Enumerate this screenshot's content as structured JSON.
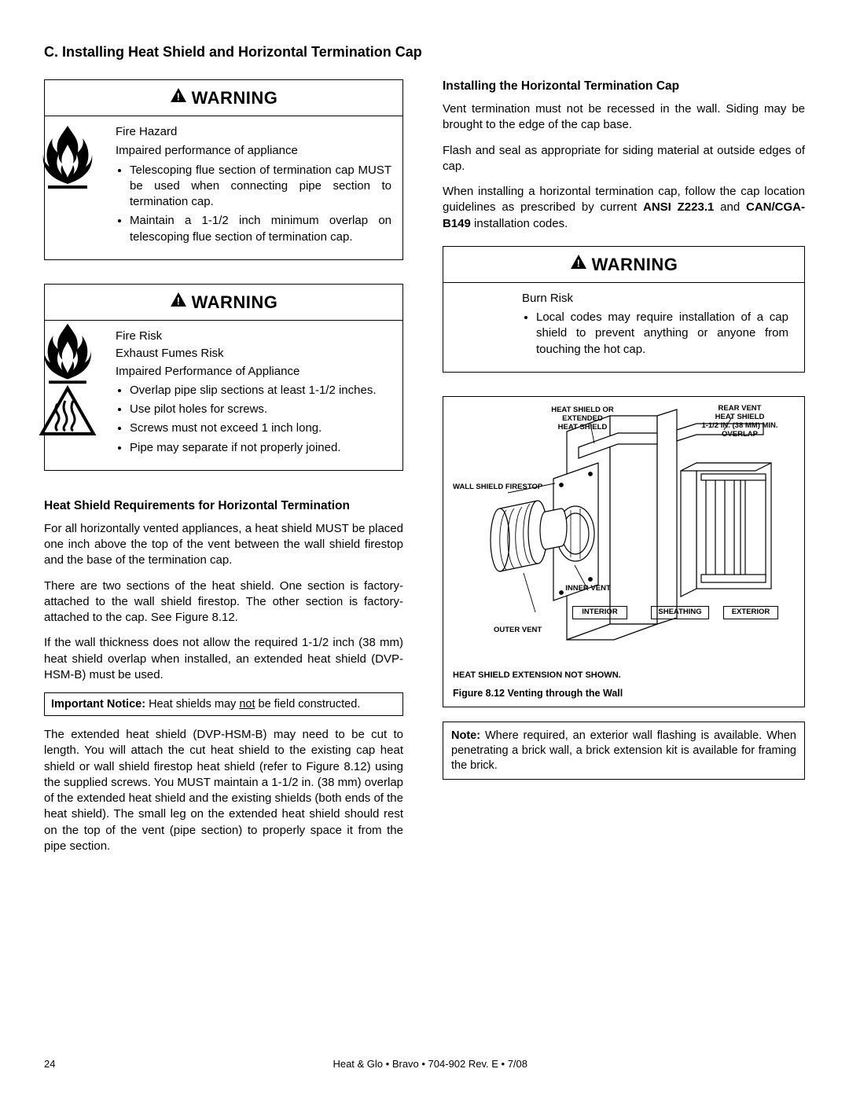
{
  "section_title": "C.  Installing Heat Shield and Horizontal Termination Cap",
  "warning1": {
    "header": "WARNING",
    "line1": "Fire Hazard",
    "line2": "Impaired performance of appliance",
    "bullets": [
      "Telescoping flue section of termination cap MUST be used when connecting pipe section to termination cap.",
      "Maintain a 1-1/2 inch minimum overlap on telescoping flue section of termination cap."
    ]
  },
  "warning2": {
    "header": "WARNING",
    "line1": "Fire Risk",
    "line2": "Exhaust Fumes Risk",
    "line3": "Impaired Performance of Appliance",
    "bullets": [
      "Overlap pipe slip sections at least 1-1/2 inches.",
      "Use pilot holes for screws.",
      "Screws must not exceed 1 inch long.",
      "Pipe may separate if not properly joined."
    ]
  },
  "left": {
    "h1": "Heat Shield Requirements for Horizontal Termination",
    "p1": "For all horizontally vented appliances, a heat shield MUST be placed one inch above the top of the vent between the wall shield firestop and the base of the termination cap.",
    "p2": "There are two sections of the heat shield. One section is factory-attached to the wall shield firestop.  The other section is factory-attached to the cap.  See Figure 8.12.",
    "p3": "If the wall thickness does not allow the required 1-1/2 inch (38 mm) heat shield overlap when installed, an extended heat shield (DVP-HSM-B) must be used.",
    "notice_prefix": "Important Notice:  ",
    "notice_rest": "Heat shields may ",
    "notice_underline": "not",
    "notice_tail": " be field constructed.",
    "p4": "The extended heat shield (DVP-HSM-B) may need to be cut to length.  You will attach the cut heat shield to the existing cap heat shield or wall shield firestop heat shield (refer to Figure 8.12) using the supplied screws.  You MUST maintain a 1-1/2 in. (38 mm) overlap of the extended heat shield and the existing shields (both ends of the heat shield).  The small leg on the extended heat shield should rest on the top of the vent (pipe section) to properly space it from the pipe section."
  },
  "right": {
    "h1": "Installing the Horizontal Termination Cap",
    "p1": "Vent termination must not be recessed in the wall. Siding may be brought to the edge of the cap base.",
    "p2": "Flash and seal as appropriate for siding material at outside edges of cap.",
    "p3a": "When installing a horizontal termination cap, follow the cap location guidelines as prescribed by current ",
    "p3b": "ANSI Z223.1",
    "p3c": " and ",
    "p3d": "CAN/CGA-B149",
    "p3e": " installation codes."
  },
  "warning3": {
    "header": "WARNING",
    "line1": "Burn  Risk",
    "bullets": [
      "Local codes may require installation of a cap shield to prevent anything or anyone from touching the hot cap."
    ]
  },
  "figure": {
    "labels": {
      "heat_shield": "HEAT SHIELD OR\nEXTENDED\nHEAT SHIELD",
      "rear_vent": "REAR VENT\nHEAT SHIELD\n1-1/2 IN. (38 MM) MIN.\nOVERLAP",
      "wall_shield": "WALL SHIELD FIRESTOP",
      "inner_vent": "INNER VENT",
      "outer_vent": "OUTER VENT",
      "interior": "INTERIOR",
      "sheathing": "SHEATHING",
      "exterior": "EXTERIOR"
    },
    "note": "HEAT SHIELD EXTENSION NOT SHOWN.",
    "caption": "Figure 8.12  Venting through the Wall"
  },
  "note_box": {
    "prefix": "Note:",
    "text": " Where required, an exterior wall flashing is available. When penetrating a brick wall, a brick extension kit is available for framing the brick."
  },
  "footer": {
    "page": "24",
    "center": "Heat & Glo  •   Bravo   •  704-902 Rev. E  •  7/08"
  }
}
